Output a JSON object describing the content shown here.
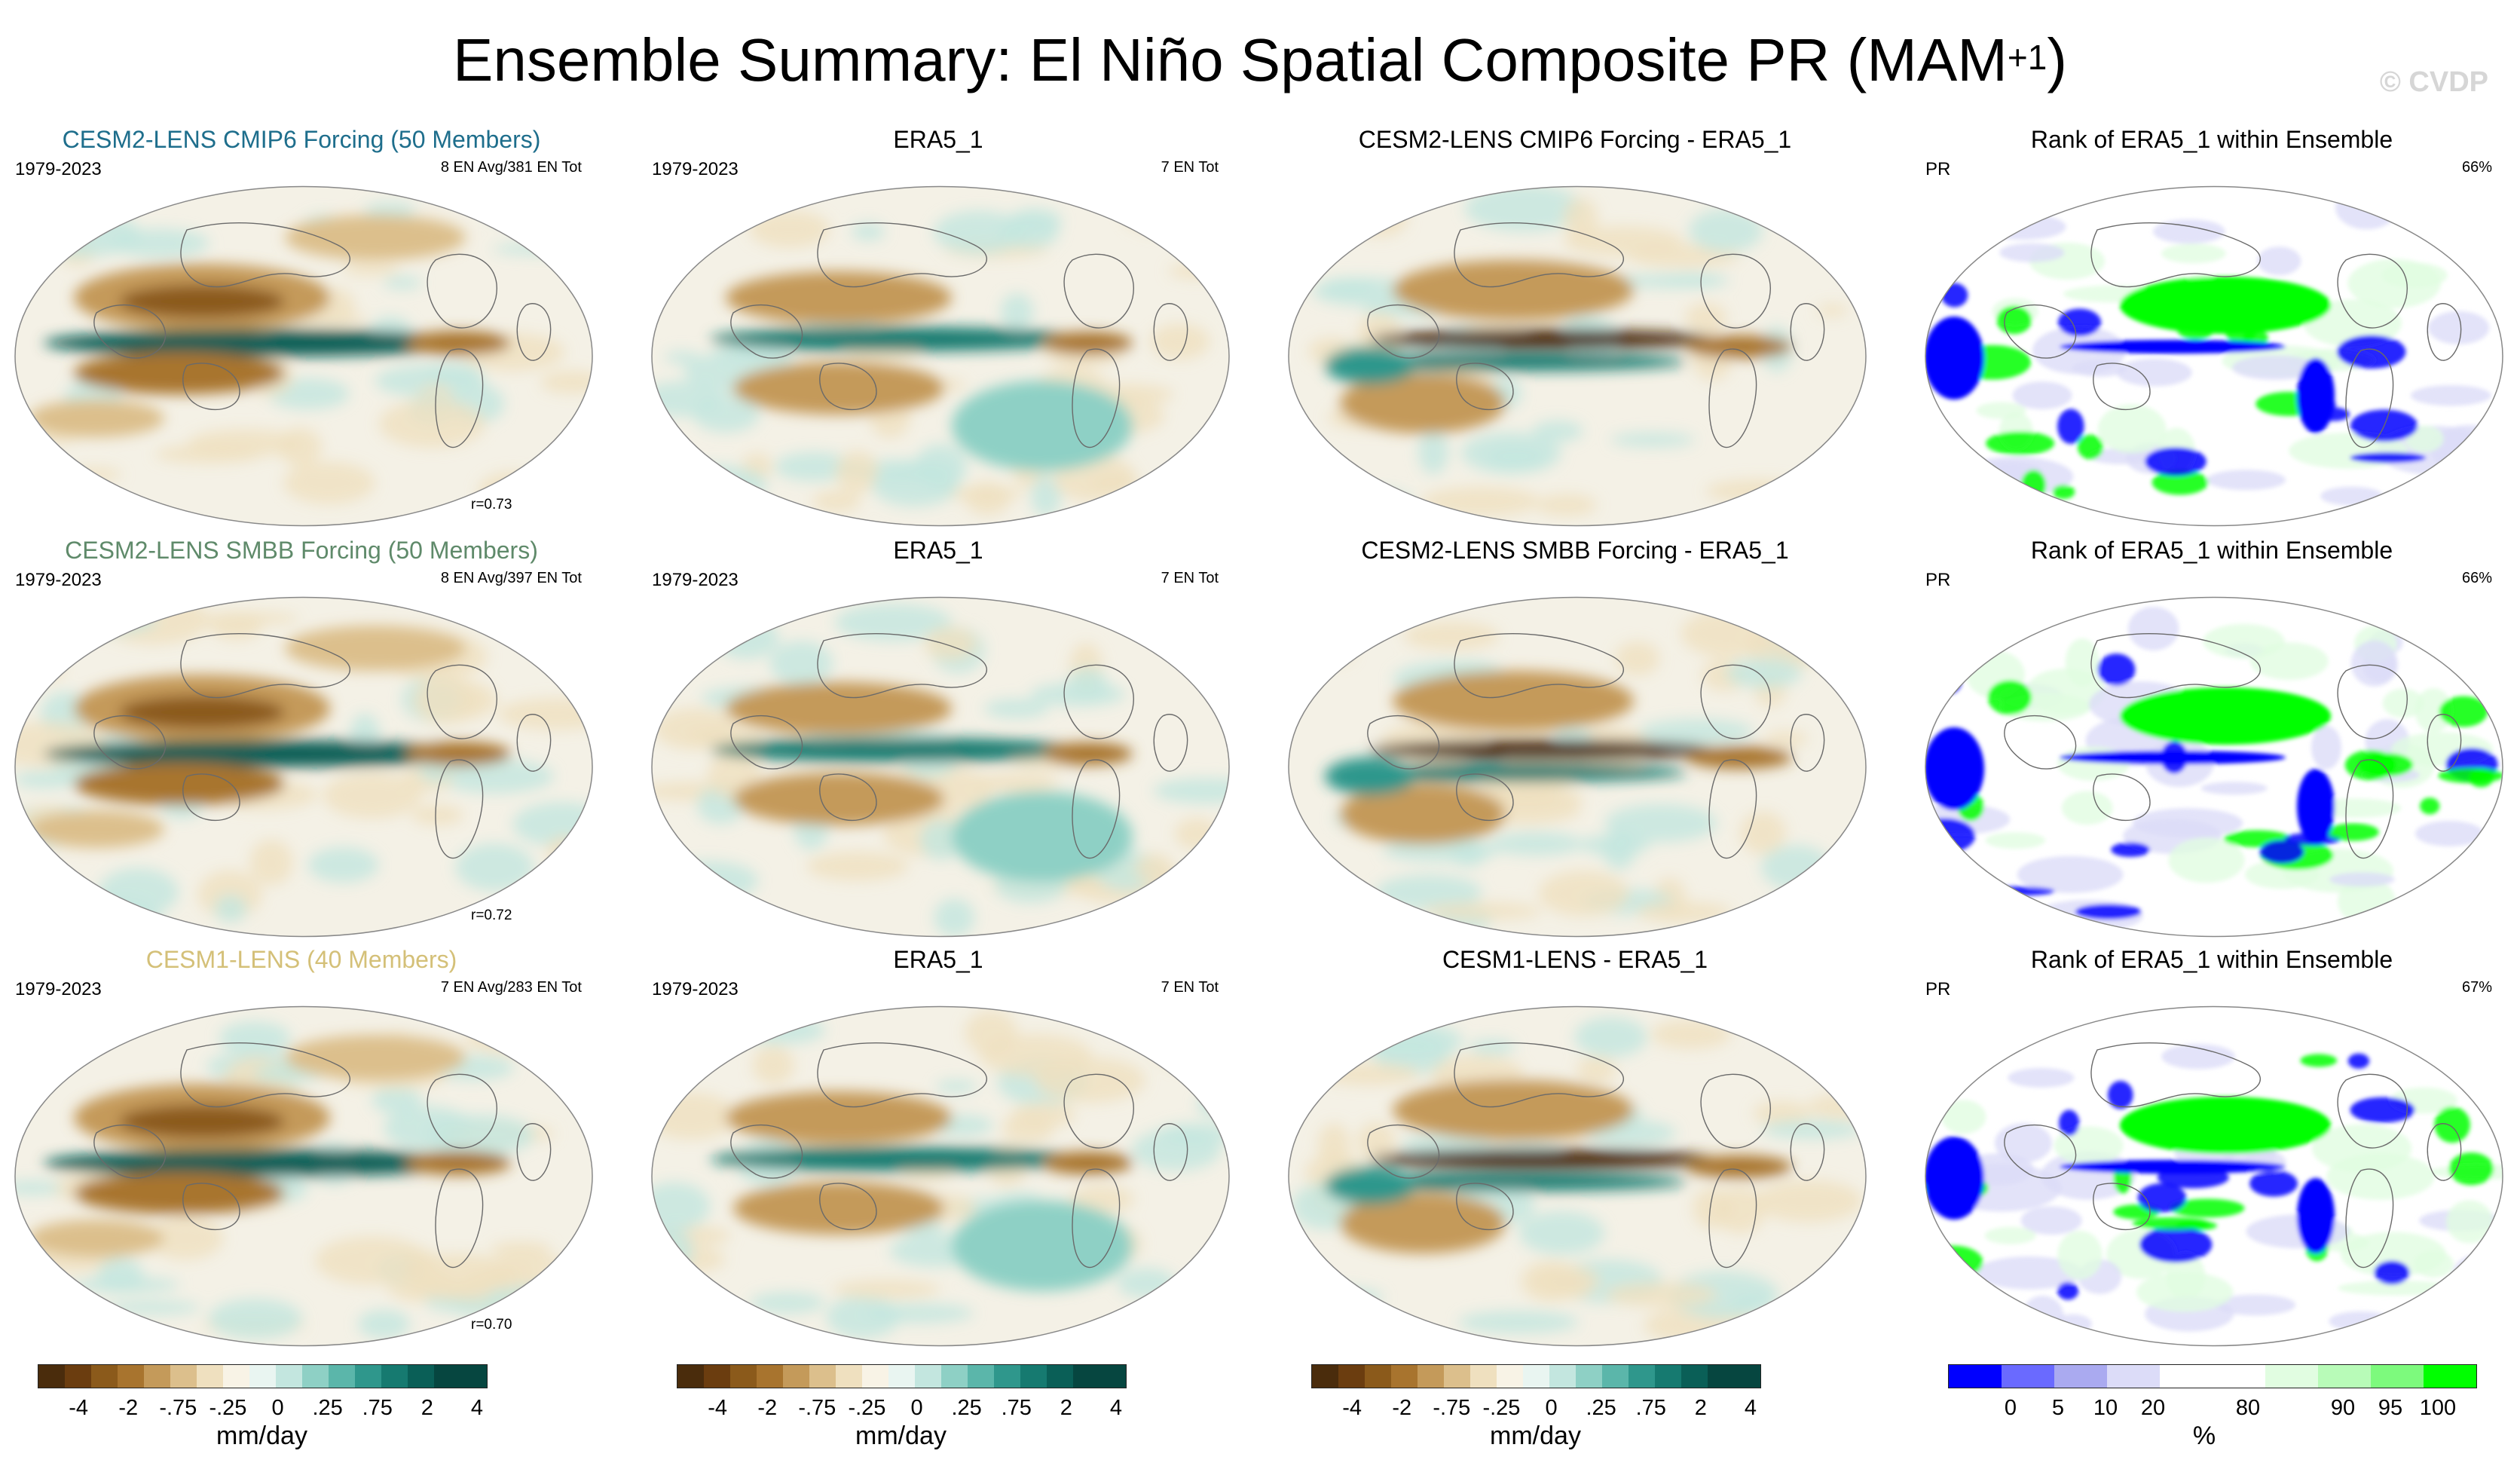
{
  "title": {
    "main": "Ensemble Summary: El Niño Spatial Composite PR (MAM",
    "sup": "+1",
    "close": ")"
  },
  "watermark": "© CVDP",
  "colors": {
    "dry": [
      "#4a2c0c",
      "#6b3d0f",
      "#8b5a1b",
      "#a8742e",
      "#c49a5a",
      "#dcbf8c",
      "#efe0bf",
      "#f8f3e6"
    ],
    "wet": [
      "#e9f5f1",
      "#c3e6df",
      "#8ed0c5",
      "#5bb6aa",
      "#2f978c",
      "#167a70",
      "#0a5f57",
      "#064640"
    ],
    "rank": [
      "#0000ff",
      "#6a6aff",
      "#aaaaf0",
      "#dcdcf8",
      "#ffffff",
      "#ffffff",
      "#e1fde1",
      "#b8fbb8",
      "#7dfa7d",
      "#00ff00"
    ]
  },
  "panels": [
    {
      "title": "CESM2-LENS CMIP6 Forcing (50 Members)",
      "title_color": "#1e6e8c",
      "left": "1979-2023",
      "right": "8 EN Avg/381 EN Tot",
      "corr": "r=0.73",
      "kind": "model",
      "band_mid": "#0a5f57",
      "band_hi": "#a8742e"
    },
    {
      "title": "ERA5_1",
      "title_color": "#000000",
      "left": "1979-2023",
      "right": "7 EN Tot",
      "corr": "",
      "kind": "obs",
      "band_mid": "#167a70",
      "band_hi": "#a8742e"
    },
    {
      "title": "CESM2-LENS CMIP6 Forcing - ERA5_1",
      "title_color": "#000000",
      "left": "",
      "right": "",
      "corr": "",
      "kind": "diff",
      "band_mid": "#4a2c0c",
      "band_hi": "#c49a5a"
    },
    {
      "title": "Rank of ERA5_1 within Ensemble",
      "title_color": "#000000",
      "left": "PR",
      "right": "66%",
      "corr": "",
      "kind": "rank",
      "band_mid": "#00ff00",
      "band_hi": "#0000ff"
    },
    {
      "title": "CESM2-LENS SMBB Forcing (50 Members)",
      "title_color": "#5f8a6a",
      "left": "1979-2023",
      "right": "8 EN Avg/397 EN Tot",
      "corr": "r=0.72",
      "kind": "model",
      "band_mid": "#0a5f57",
      "band_hi": "#a8742e"
    },
    {
      "title": "ERA5_1",
      "title_color": "#000000",
      "left": "1979-2023",
      "right": "7 EN Tot",
      "corr": "",
      "kind": "obs",
      "band_mid": "#167a70",
      "band_hi": "#a8742e"
    },
    {
      "title": "CESM2-LENS SMBB Forcing - ERA5_1",
      "title_color": "#000000",
      "left": "",
      "right": "",
      "corr": "",
      "kind": "diff",
      "band_mid": "#4a2c0c",
      "band_hi": "#c49a5a"
    },
    {
      "title": "Rank of ERA5_1 within Ensemble",
      "title_color": "#000000",
      "left": "PR",
      "right": "66%",
      "corr": "",
      "kind": "rank",
      "band_mid": "#00ff00",
      "band_hi": "#0000ff"
    },
    {
      "title": "CESM1-LENS (40 Members)",
      "title_color": "#d4c078",
      "left": "1979-2023",
      "right": "7 EN Avg/283 EN Tot",
      "corr": "r=0.70",
      "kind": "model",
      "band_mid": "#0a5f57",
      "band_hi": "#a8742e"
    },
    {
      "title": "ERA5_1",
      "title_color": "#000000",
      "left": "1979-2023",
      "right": "7 EN Tot",
      "corr": "",
      "kind": "obs",
      "band_mid": "#167a70",
      "band_hi": "#a8742e"
    },
    {
      "title": "CESM1-LENS - ERA5_1",
      "title_color": "#000000",
      "left": "",
      "right": "",
      "corr": "",
      "kind": "diff",
      "band_mid": "#4a2c0c",
      "band_hi": "#c49a5a"
    },
    {
      "title": "Rank of ERA5_1 within Ensemble",
      "title_color": "#000000",
      "left": "PR",
      "right": "67%",
      "corr": "",
      "kind": "rank",
      "band_mid": "#00ff00",
      "band_hi": "#0000ff"
    }
  ],
  "chart_data": {
    "type": "heatmap",
    "title": "Ensemble Summary: El Niño Spatial Composite PR (MAM+1)",
    "variable": "PR",
    "period": "1979-2023",
    "pattern_correlations": [
      {
        "ensemble": "CESM2-LENS CMIP6 Forcing (50 Members)",
        "r": 0.73,
        "en_avg": 8,
        "en_tot": 381
      },
      {
        "ensemble": "CESM2-LENS SMBB Forcing (50 Members)",
        "r": 0.72,
        "en_avg": 8,
        "en_tot": 397
      },
      {
        "ensemble": "CESM1-LENS (40 Members)",
        "r": 0.7,
        "en_avg": 7,
        "en_tot": 283
      }
    ],
    "observed_en_tot": 7,
    "rank_percent": [
      66,
      66,
      67
    ],
    "colorbars": [
      {
        "units": "mm/day",
        "ticks": [
          "-4",
          "-2",
          "-.75",
          "-.25",
          "0",
          ".25",
          ".75",
          "2",
          "4"
        ]
      },
      {
        "units": "mm/day",
        "ticks": [
          "-4",
          "-2",
          "-.75",
          "-.25",
          "0",
          ".25",
          ".75",
          "2",
          "4"
        ]
      },
      {
        "units": "mm/day",
        "ticks": [
          "-4",
          "-2",
          "-.75",
          "-.25",
          "0",
          ".25",
          ".75",
          "2",
          "4"
        ]
      },
      {
        "units": "%",
        "ticks": [
          "0",
          "5",
          "10",
          "20",
          "80",
          "90",
          "95",
          "100"
        ]
      }
    ]
  }
}
